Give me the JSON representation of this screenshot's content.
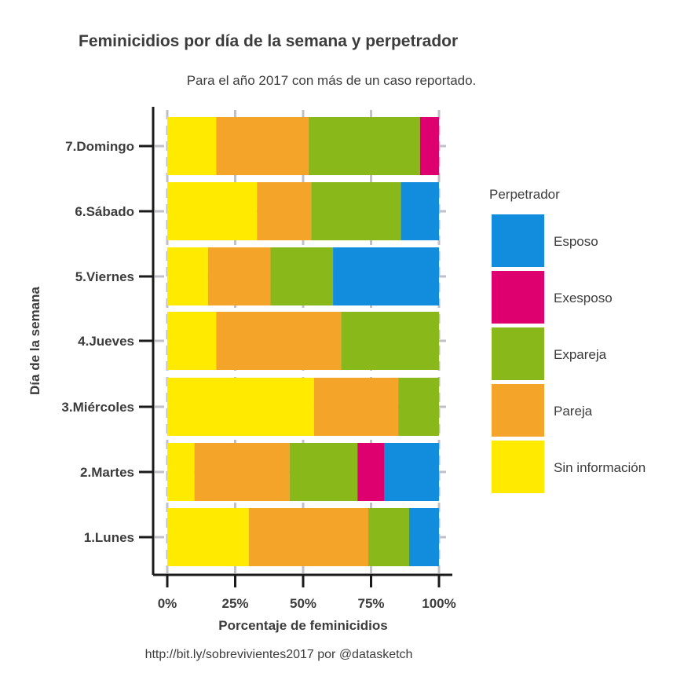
{
  "chart_data": {
    "type": "bar",
    "orientation": "horizontal",
    "stacked": true,
    "title": "Feminicidios por día de la semana y perpetrador",
    "subtitle": "Para el año 2017 con más de un caso reportado.",
    "caption": "http://bit.ly/sobrevivientes2017 por @datasketch",
    "xlabel": "Porcentaje de feminicidios",
    "ylabel": "Día de la semana",
    "xlim": [
      0,
      1
    ],
    "xticks": [
      0,
      0.25,
      0.5,
      0.75,
      1
    ],
    "xtick_labels": [
      "0%",
      "25%",
      "50%",
      "75%",
      "100%"
    ],
    "grid": true,
    "legend_title": "Perpetrador",
    "legend_position": "right",
    "categories": [
      "1.Lunes",
      "2.Martes",
      "3.Miércoles",
      "4.Jueves",
      "5.Viernes",
      "6.Sábado",
      "7.Domingo"
    ],
    "series": [
      {
        "name": "Sin información",
        "color": "#FFEA00",
        "values": [
          0.3,
          0.1,
          0.54,
          0.18,
          0.15,
          0.33,
          0.18
        ]
      },
      {
        "name": "Pareja",
        "color": "#F5A42A",
        "values": [
          0.44,
          0.35,
          0.31,
          0.46,
          0.23,
          0.2,
          0.34
        ]
      },
      {
        "name": "Expareja",
        "color": "#88B819",
        "values": [
          0.15,
          0.25,
          0.15,
          0.36,
          0.23,
          0.33,
          0.41
        ]
      },
      {
        "name": "Exesposo",
        "color": "#DE006F",
        "values": [
          0,
          0.1,
          0,
          0,
          0,
          0,
          0.07
        ]
      },
      {
        "name": "Esposo",
        "color": "#128DDD",
        "values": [
          0.11,
          0.2,
          0,
          0,
          0.39,
          0.14,
          0
        ]
      }
    ],
    "legend_order": [
      "Esposo",
      "Exesposo",
      "Expareja",
      "Pareja",
      "Sin información"
    ]
  }
}
